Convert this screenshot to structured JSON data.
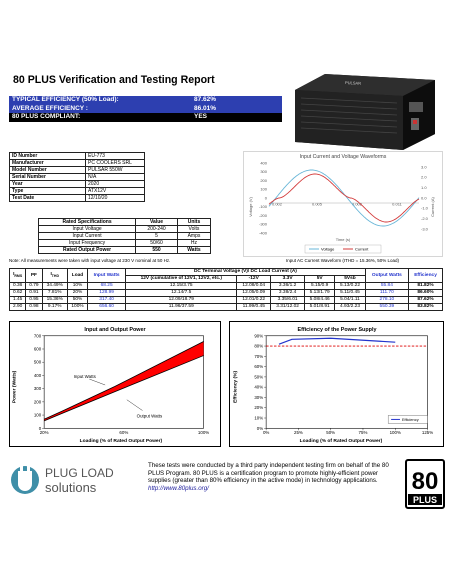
{
  "title": "80 PLUS Verification and Testing Report",
  "summary": [
    {
      "label": "TYPICAL EFFICIENCY (50% Load):",
      "value": "87.62%"
    },
    {
      "label": "AVERAGE EFFICIENCY :",
      "value": "86.01%"
    },
    {
      "label": "80 PLUS COMPLIANT:",
      "value": "YES"
    }
  ],
  "info": [
    {
      "k": "ID Number",
      "v": "EU-773"
    },
    {
      "k": "Manufacturer",
      "v": "PC COOLERS SRL"
    },
    {
      "k": "Model Number",
      "v": "PULSAR 550W"
    },
    {
      "k": "Serial Number",
      "v": "N/A"
    },
    {
      "k": "Year",
      "v": "2020"
    },
    {
      "k": "Type",
      "v": "ATX12V"
    },
    {
      "k": "Test Date",
      "v": "12/10/20"
    }
  ],
  "waveform": {
    "title": "Input Current and Voltage Waveforms",
    "y_left_ticks": [
      "400",
      "300",
      "200",
      "100",
      "0",
      "-100",
      "-200",
      "-300",
      "-400"
    ],
    "y_right_ticks": [
      "3.0",
      "2.0",
      "1.0",
      "0.0",
      "-1.0",
      "-2.0",
      "-3.0"
    ],
    "x_ticks": [
      "0.002",
      "0.005",
      "0.008",
      "0.011"
    ],
    "xlabel": "Time (s)",
    "ylabel_left": "Voltage (V)",
    "ylabel_right": "Current (A)",
    "legend": [
      "Voltage",
      "Current"
    ],
    "voltage_color": "#6ab7d8",
    "current_color": "#d33b3b",
    "note": "Input AC Current Waveform (ITHD = 15.36%, 50% Load)"
  },
  "rated": {
    "header": [
      "Rated Specifications",
      "Value",
      "Units"
    ],
    "rows": [
      [
        "Input Voltage",
        "200-240",
        "Volts"
      ],
      [
        "Input Current",
        "5",
        "Amps"
      ],
      [
        "Input Frequency",
        "50/60",
        "Hz"
      ],
      [
        "Rated Output Power",
        "550",
        "Watts"
      ]
    ]
  },
  "note": "Note: All measurements were taken with input voltage at 230 V nominal at 50 Hz.",
  "data_table": {
    "h_irms": "IRMS",
    "h_pf": "PF",
    "h_ithd": "ITHD",
    "h_load": "Load",
    "h_input": "Input Watts",
    "h_dc": "DC Terminal Voltage (V)/ DC Load Current (A)",
    "h_12v": "12V (cumulative of 12V1, 12V2, etc.)",
    "h_m12v": "-12V",
    "h_33v": "3.3V",
    "h_5v": "5V",
    "h_5vsb": "5Vsb",
    "h_output": "Output Watts",
    "h_eff": "Efficiency",
    "rows": [
      [
        "0.36",
        "0.79",
        "34.49%",
        "10%",
        "68.25",
        "12.15/3.75",
        "12.08/0.04",
        "3.36/1.2",
        "5.15/0.9",
        "5.13/0.22",
        "55.84",
        "81.82%"
      ],
      [
        "0.62",
        "0.91",
        "7.81%",
        "20%",
        "128.99",
        "12.14/7.5",
        "12.05/0.09",
        "3.38/2.4",
        "5.13/1.79",
        "5.11/0.45",
        "111.70",
        "86.60%"
      ],
      [
        "1.45",
        "0.95",
        "15.36%",
        "50%",
        "317.40",
        "12.09/18.79",
        "12.01/0.22",
        "3.35/6.01",
        "5.08/4.46",
        "5.04/1.11",
        "278.10",
        "87.62%"
      ],
      [
        "2.90",
        "0.98",
        "9.17%",
        "100%",
        "656.60",
        "11.96/37.59",
        "11.99/0.45",
        "3.31/12.02",
        "5.01/8.91",
        "4.93/2.23",
        "550.39",
        "83.82%"
      ]
    ]
  },
  "chart_data": [
    {
      "type": "area",
      "title": "Input and Output Power",
      "xlabel": "Loading (% of Rated Output Power)",
      "ylabel": "Power (Watts)",
      "x_ticks": [
        "20%",
        "60%",
        "100%"
      ],
      "y_ticks": [
        "0",
        "100",
        "200",
        "300",
        "400",
        "500",
        "600",
        "700"
      ],
      "ylim": [
        0,
        700
      ],
      "x": [
        10,
        20,
        50,
        100
      ],
      "series": [
        {
          "name": "Input Watts",
          "values": [
            68.25,
            128.99,
            317.4,
            656.6
          ]
        },
        {
          "name": "Output Watts",
          "values": [
            55.84,
            111.7,
            278.1,
            550.39
          ]
        }
      ],
      "fill_color": "#ff0000"
    },
    {
      "type": "line",
      "title": "Efficiency of the Power Supply",
      "xlabel": "Loading (% of Rated Output Power)",
      "ylabel": "Efficiency (%)",
      "x_ticks": [
        "0%",
        "25%",
        "50%",
        "75%",
        "100%",
        "125%"
      ],
      "y_ticks": [
        "0%",
        "10%",
        "20%",
        "30%",
        "40%",
        "50%",
        "60%",
        "70%",
        "80%",
        "90%"
      ],
      "ylim": [
        0,
        90
      ],
      "x": [
        10,
        20,
        50,
        100
      ],
      "series": [
        {
          "name": "Efficiency",
          "values": [
            81.82,
            86.6,
            87.62,
            83.82
          ]
        }
      ],
      "threshold": 80,
      "line_color": "#2233cc",
      "threshold_color": "#dd0000"
    }
  ],
  "footer": {
    "logo_line1": "PLUG LOAD",
    "logo_line2": "solutions",
    "text": "These tests were conducted by a third party independent testing firm on behalf of the 80 PLUS Program. 80 PLUS is a certification program to promote highly-efficient power supplies (greater than 80% efficiency in the active mode) in technology applications.",
    "link": "http://www.80plus.org/",
    "badge_num": "80",
    "badge_text": "PLUS"
  }
}
